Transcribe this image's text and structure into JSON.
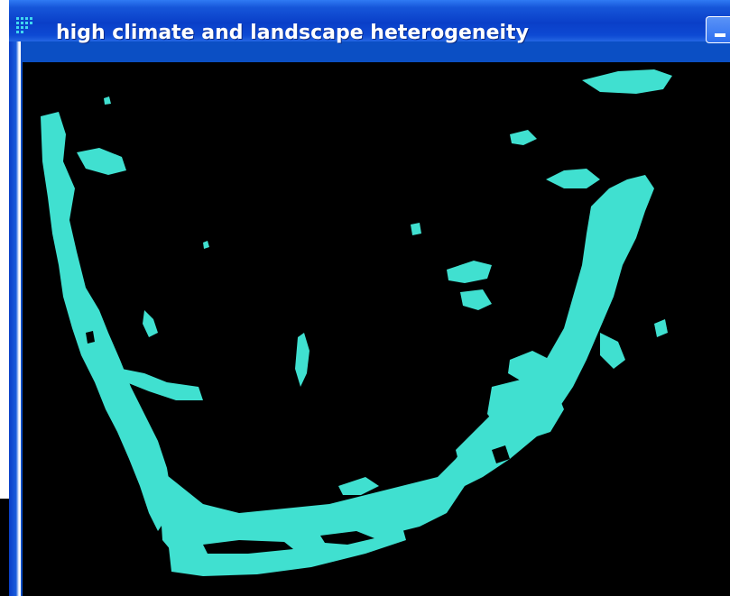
{
  "window": {
    "title": "high climate and landscape heterogeneity",
    "title_icon": "app-grid-icon",
    "minimize_icon": "minimize-icon"
  },
  "map": {
    "background_color": "#000000",
    "highlight_color": "#40e0d0",
    "description": "raster map highlighting areas of high climate and landscape heterogeneity"
  },
  "colors": {
    "titlebar": "#0a3fc8",
    "title_text": "#ffffff"
  }
}
